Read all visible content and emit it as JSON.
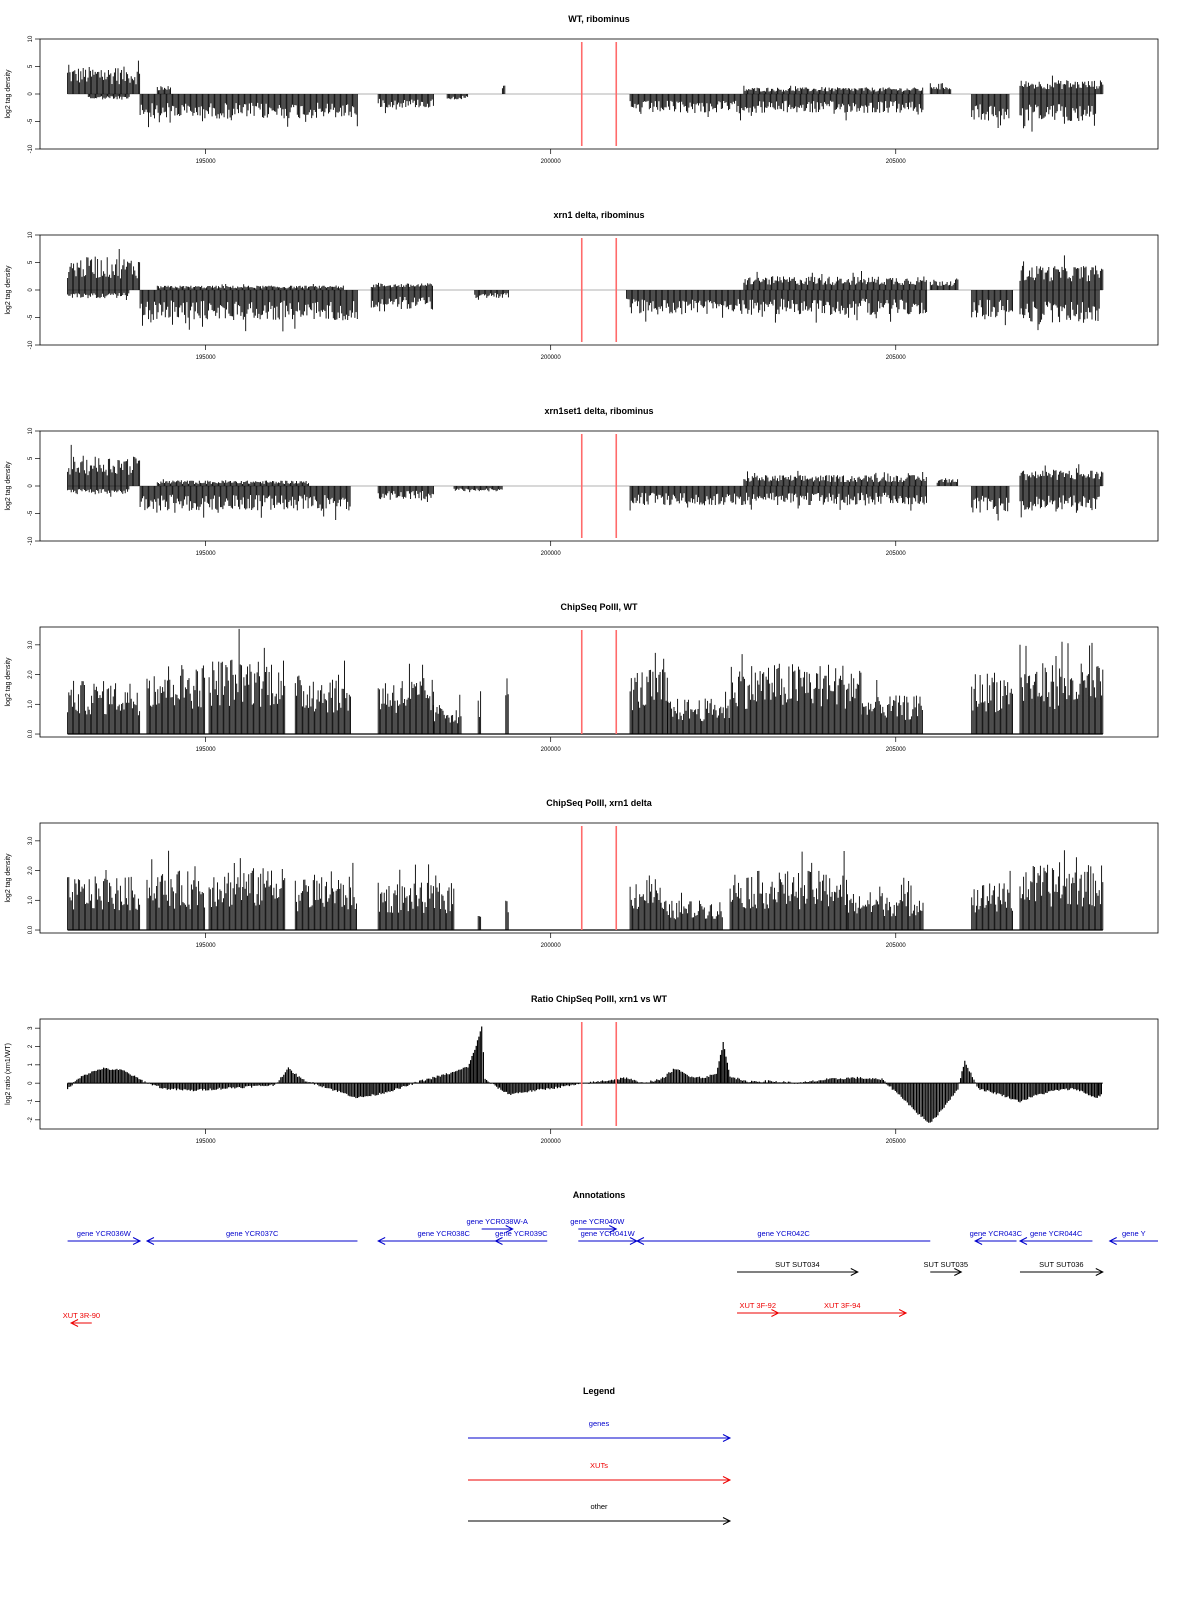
{
  "chart_data": [
    {
      "type": "bar",
      "title": "WT, ribominus",
      "ylabel": "log2 tag density",
      "xlim": [
        192600,
        208800
      ],
      "ylim": [
        -10,
        10
      ],
      "yticks": [
        "-10",
        "-5",
        "0",
        "5",
        "10"
      ],
      "xticks": [
        "195000",
        "200000",
        "205000"
      ],
      "xticks_values": [
        195000,
        200000,
        205000
      ],
      "markers_x": [
        200450,
        200950
      ],
      "marker_color": "#ff6b6b",
      "segments": [
        {
          "x0": 193000,
          "x1": 194050,
          "sign": 1,
          "amp": 5
        },
        {
          "x0": 193300,
          "x1": 193900,
          "sign": -1,
          "amp": 1
        },
        {
          "x0": 194050,
          "x1": 197200,
          "sign": -1,
          "amp": 4.5
        },
        {
          "x0": 194300,
          "x1": 194500,
          "sign": 1,
          "amp": 1.5
        },
        {
          "x0": 197500,
          "x1": 198300,
          "sign": -1,
          "amp": 2.5
        },
        {
          "x0": 198500,
          "x1": 198800,
          "sign": -1,
          "amp": 1
        },
        {
          "x0": 199300,
          "x1": 199350,
          "sign": 1,
          "amp": 2.5
        },
        {
          "x0": 201150,
          "x1": 205400,
          "sign": -1,
          "amp": 3.5
        },
        {
          "x0": 202800,
          "x1": 205400,
          "sign": 1,
          "amp": 1.2
        },
        {
          "x0": 205500,
          "x1": 205800,
          "sign": 1,
          "amp": 2
        },
        {
          "x0": 206100,
          "x1": 206650,
          "sign": -1,
          "amp": 5
        },
        {
          "x0": 206800,
          "x1": 207900,
          "sign": -1,
          "amp": 5
        },
        {
          "x0": 206800,
          "x1": 208000,
          "sign": 1,
          "amp": 2.5
        }
      ]
    },
    {
      "type": "bar",
      "title": "xrn1 delta, ribominus",
      "ylabel": "log2 tag density",
      "xlim": [
        192600,
        208800
      ],
      "ylim": [
        -10,
        10
      ],
      "yticks": [
        "-10",
        "-5",
        "0",
        "5",
        "10"
      ],
      "xticks": [
        "195000",
        "200000",
        "205000"
      ],
      "xticks_values": [
        195000,
        200000,
        205000
      ],
      "markers_x": [
        200450,
        200950
      ],
      "marker_color": "#ff6b6b",
      "segments": [
        {
          "x0": 193000,
          "x1": 194050,
          "sign": 1,
          "amp": 6
        },
        {
          "x0": 193000,
          "x1": 193900,
          "sign": -1,
          "amp": 1.5
        },
        {
          "x0": 194050,
          "x1": 197200,
          "sign": -1,
          "amp": 5.5
        },
        {
          "x0": 194300,
          "x1": 197000,
          "sign": 1,
          "amp": 0.8
        },
        {
          "x0": 197400,
          "x1": 198300,
          "sign": -1,
          "amp": 3.5
        },
        {
          "x0": 197400,
          "x1": 198300,
          "sign": 1,
          "amp": 1.2
        },
        {
          "x0": 198900,
          "x1": 199400,
          "sign": -1,
          "amp": 1.5
        },
        {
          "x0": 201100,
          "x1": 205450,
          "sign": -1,
          "amp": 4.5
        },
        {
          "x0": 202800,
          "x1": 205450,
          "sign": 1,
          "amp": 2.5
        },
        {
          "x0": 205500,
          "x1": 205900,
          "sign": 1,
          "amp": 2
        },
        {
          "x0": 206100,
          "x1": 206700,
          "sign": -1,
          "amp": 5
        },
        {
          "x0": 206800,
          "x1": 207950,
          "sign": -1,
          "amp": 6
        },
        {
          "x0": 206800,
          "x1": 208000,
          "sign": 1,
          "amp": 4.5
        }
      ]
    },
    {
      "type": "bar",
      "title": "xrn1set1 delta, ribominus",
      "ylabel": "log2 tag density",
      "xlim": [
        192600,
        208800
      ],
      "ylim": [
        -10,
        10
      ],
      "yticks": [
        "-10",
        "-5",
        "0",
        "5",
        "10"
      ],
      "xticks": [
        "195000",
        "200000",
        "205000"
      ],
      "xticks_values": [
        195000,
        200000,
        205000
      ],
      "markers_x": [
        200450,
        200950
      ],
      "marker_color": "#ff6b6b",
      "segments": [
        {
          "x0": 193000,
          "x1": 194050,
          "sign": 1,
          "amp": 5.5
        },
        {
          "x0": 193000,
          "x1": 193900,
          "sign": -1,
          "amp": 1.5
        },
        {
          "x0": 194050,
          "x1": 197100,
          "sign": -1,
          "amp": 4.5
        },
        {
          "x0": 194300,
          "x1": 196500,
          "sign": 1,
          "amp": 1
        },
        {
          "x0": 197500,
          "x1": 198300,
          "sign": -1,
          "amp": 2.5
        },
        {
          "x0": 198600,
          "x1": 199300,
          "sign": -1,
          "amp": 1
        },
        {
          "x0": 201150,
          "x1": 205450,
          "sign": -1,
          "amp": 3.5
        },
        {
          "x0": 202800,
          "x1": 205450,
          "sign": 1,
          "amp": 2
        },
        {
          "x0": 205600,
          "x1": 205900,
          "sign": 1,
          "amp": 1.5
        },
        {
          "x0": 206100,
          "x1": 206650,
          "sign": -1,
          "amp": 5
        },
        {
          "x0": 206800,
          "x1": 207950,
          "sign": -1,
          "amp": 4.5
        },
        {
          "x0": 206800,
          "x1": 208000,
          "sign": 1,
          "amp": 3
        }
      ]
    },
    {
      "type": "bar",
      "title": "ChipSeq PolII, WT",
      "ylabel": "log2 tag density",
      "xlim": [
        192600,
        208800
      ],
      "ylim": [
        -0.1,
        3.6
      ],
      "yticks": [
        "0.0",
        "1.0",
        "2.0",
        "3.0"
      ],
      "yticks_values": [
        0,
        1,
        2,
        3
      ],
      "xticks": [
        "195000",
        "200000",
        "205000"
      ],
      "xticks_values": [
        195000,
        200000,
        205000
      ],
      "markers_x": [
        200450,
        200950
      ],
      "marker_color": "#ff6b6b",
      "segments": [
        {
          "x0": 193000,
          "x1": 194050,
          "sign": 1,
          "amp": 1.8
        },
        {
          "x0": 194150,
          "x1": 195000,
          "sign": 1,
          "amp": 2.4
        },
        {
          "x0": 195050,
          "x1": 196150,
          "sign": 1,
          "amp": 2.6
        },
        {
          "x0": 196300,
          "x1": 197100,
          "sign": 1,
          "amp": 2.0
        },
        {
          "x0": 197500,
          "x1": 198300,
          "sign": 1,
          "amp": 1.9
        },
        {
          "x0": 198300,
          "x1": 198700,
          "sign": 1,
          "amp": 1.0
        },
        {
          "x0": 198950,
          "x1": 198990,
          "sign": 1,
          "amp": 1.5
        },
        {
          "x0": 199350,
          "x1": 199390,
          "sign": 1,
          "amp": 2.0
        },
        {
          "x0": 201150,
          "x1": 201700,
          "sign": 1,
          "amp": 2.2
        },
        {
          "x0": 201700,
          "x1": 202600,
          "sign": 1,
          "amp": 1.2
        },
        {
          "x0": 202600,
          "x1": 204500,
          "sign": 1,
          "amp": 2.4
        },
        {
          "x0": 204500,
          "x1": 205400,
          "sign": 1,
          "amp": 1.3
        },
        {
          "x0": 206100,
          "x1": 206700,
          "sign": 1,
          "amp": 2.1
        },
        {
          "x0": 206800,
          "x1": 208000,
          "sign": 1,
          "amp": 2.4
        }
      ]
    },
    {
      "type": "bar",
      "title": "ChipSeq PolII, xrn1 delta",
      "ylabel": "log2 tag density",
      "xlim": [
        192600,
        208800
      ],
      "ylim": [
        -0.1,
        3.6
      ],
      "yticks": [
        "0.0",
        "1.0",
        "2.0",
        "3.0"
      ],
      "yticks_values": [
        0,
        1,
        2,
        3
      ],
      "xticks": [
        "195000",
        "200000",
        "205000"
      ],
      "xticks_values": [
        195000,
        200000,
        205000
      ],
      "markers_x": [
        200450,
        200950
      ],
      "marker_color": "#ff6b6b",
      "segments": [
        {
          "x0": 193000,
          "x1": 194050,
          "sign": 1,
          "amp": 1.8
        },
        {
          "x0": 194150,
          "x1": 195000,
          "sign": 1,
          "amp": 2.0
        },
        {
          "x0": 195050,
          "x1": 196150,
          "sign": 1,
          "amp": 2.1
        },
        {
          "x0": 196300,
          "x1": 197200,
          "sign": 1,
          "amp": 1.8
        },
        {
          "x0": 197500,
          "x1": 198600,
          "sign": 1,
          "amp": 1.6
        },
        {
          "x0": 198950,
          "x1": 198990,
          "sign": 1,
          "amp": 0.9
        },
        {
          "x0": 199350,
          "x1": 199390,
          "sign": 1,
          "amp": 1.1
        },
        {
          "x0": 201150,
          "x1": 201600,
          "sign": 1,
          "amp": 1.8
        },
        {
          "x0": 201600,
          "x1": 202500,
          "sign": 1,
          "amp": 1.0
        },
        {
          "x0": 202600,
          "x1": 204300,
          "sign": 1,
          "amp": 2.0
        },
        {
          "x0": 204300,
          "x1": 205400,
          "sign": 1,
          "amp": 1.3
        },
        {
          "x0": 206100,
          "x1": 206700,
          "sign": 1,
          "amp": 1.6
        },
        {
          "x0": 206800,
          "x1": 208000,
          "sign": 1,
          "amp": 2.2
        }
      ]
    },
    {
      "type": "area",
      "title": "Ratio ChipSeq PolII, xrn1 vs WT",
      "ylabel": "log2 ratio (xrn1/WT)",
      "xlim": [
        192600,
        208800
      ],
      "ylim": [
        -2.5,
        3.5
      ],
      "yticks": [
        "-2",
        "-1",
        "0",
        "1",
        "2",
        "3"
      ],
      "yticks_values": [
        -2,
        -1,
        0,
        1,
        2,
        3
      ],
      "xticks": [
        "195000",
        "200000",
        "205000"
      ],
      "xticks_values": [
        195000,
        200000,
        205000
      ],
      "markers_x": [
        200450,
        200950
      ],
      "marker_color": "#ff6b6b",
      "x": [
        193000,
        193200,
        193500,
        193800,
        194100,
        194400,
        194800,
        195200,
        195600,
        196000,
        196200,
        196400,
        196800,
        197200,
        197500,
        197800,
        198100,
        198400,
        198600,
        198800,
        198900,
        199000,
        199050,
        199300,
        199400,
        201100,
        201300,
        201600,
        201800,
        202000,
        202200,
        202400,
        202500,
        202600,
        202800,
        203200,
        203600,
        204000,
        204400,
        204800,
        205100,
        205300,
        205500,
        205700,
        205900,
        206000,
        206200,
        206500,
        206800,
        207000,
        207300,
        207600,
        207900,
        208000
      ],
      "y": [
        -0.3,
        0.4,
        0.8,
        0.7,
        0.1,
        -0.3,
        -0.4,
        -0.3,
        -0.2,
        -0.1,
        0.8,
        0.2,
        -0.3,
        -0.8,
        -0.6,
        -0.3,
        0.1,
        0.4,
        0.6,
        0.9,
        1.8,
        3.1,
        0.2,
        -0.4,
        -0.6,
        0.3,
        0.0,
        0.2,
        0.8,
        0.4,
        0.3,
        0.5,
        2.2,
        0.4,
        0.1,
        0.1,
        0.0,
        0.2,
        0.3,
        0.2,
        -0.8,
        -1.6,
        -2.2,
        -1.3,
        -0.3,
        1.2,
        -0.3,
        -0.6,
        -1.0,
        -0.7,
        -0.4,
        -0.3,
        -0.8,
        -0.6
      ]
    }
  ],
  "annotations": {
    "title": "Annotations",
    "rows": [
      {
        "color": "#0000cc",
        "items": [
          {
            "label": "gene YCR036W",
            "x0": 193000,
            "x1": 194050,
            "dir": "right"
          },
          {
            "label": "gene YCR037C",
            "x0": 194150,
            "x1": 197200,
            "dir": "left"
          },
          {
            "label": "gene YCR038C",
            "x0": 197500,
            "x1": 199400,
            "dir": "left"
          },
          {
            "label": "gene YCR039C",
            "x0": 199200,
            "x1": 199950,
            "dir": "left"
          },
          {
            "label": "gene YCR041W",
            "x0": 200400,
            "x1": 201250,
            "dir": "right"
          },
          {
            "label": "gene YCR042C",
            "x0": 201250,
            "x1": 205500,
            "dir": "left"
          },
          {
            "label": "gene YCR043C",
            "x0": 206150,
            "x1": 206750,
            "dir": "left"
          },
          {
            "label": "gene YCR044C",
            "x0": 206800,
            "x1": 207850,
            "dir": "left"
          },
          {
            "label": "gene Y",
            "x0": 208100,
            "x1": 208800,
            "dir": "left"
          }
        ]
      },
      {
        "color": "#0000cc",
        "items": [
          {
            "label": "gene YCR038W-A",
            "x0": 199000,
            "x1": 199450,
            "dir": "right"
          },
          {
            "label": "gene YCR040W",
            "x0": 200400,
            "x1": 200950,
            "dir": "right"
          }
        ]
      },
      {
        "color": "#000000",
        "items": [
          {
            "label": "SUT SUT034",
            "x0": 202700,
            "x1": 204450,
            "dir": "right"
          },
          {
            "label": "SUT SUT035",
            "x0": 205500,
            "x1": 205950,
            "dir": "right"
          },
          {
            "label": "SUT SUT036",
            "x0": 206800,
            "x1": 208000,
            "dir": "right"
          }
        ]
      },
      {
        "color": "#ee0000",
        "items": [
          {
            "label": "XUT 3F-92",
            "x0": 202700,
            "x1": 203300,
            "dir": "right"
          },
          {
            "label": "XUT 3F-94",
            "x0": 203300,
            "x1": 205150,
            "dir": "right"
          }
        ]
      },
      {
        "color": "#ee0000",
        "items": [
          {
            "label": "XUT 3R-90",
            "x0": 193050,
            "x1": 193350,
            "dir": "left"
          }
        ]
      }
    ]
  },
  "legend": {
    "title": "Legend",
    "items": [
      {
        "label": "genes",
        "color": "#0000cc"
      },
      {
        "label": "XUTs",
        "color": "#ee0000"
      },
      {
        "label": "other",
        "color": "#000000"
      }
    ]
  }
}
